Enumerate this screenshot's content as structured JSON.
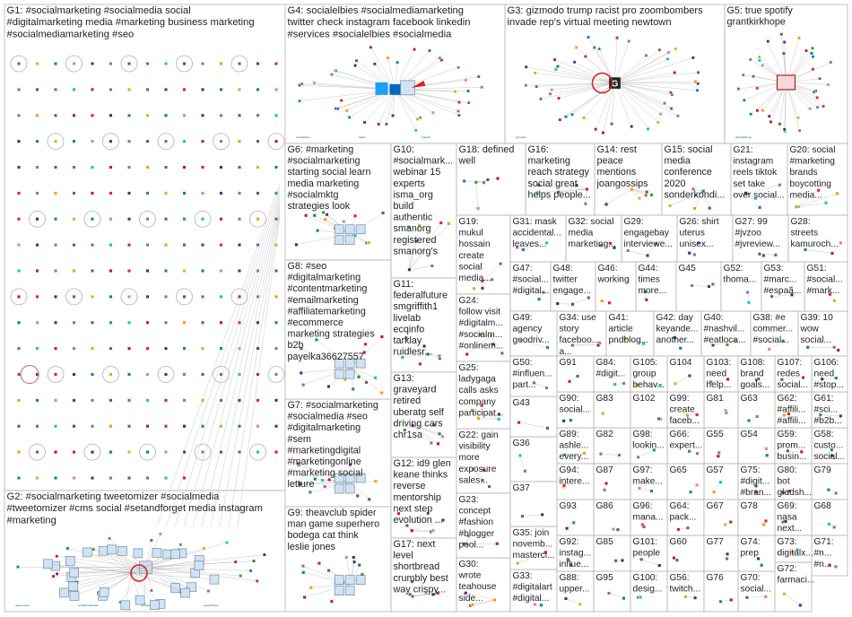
{
  "groups": [
    {
      "id": "G1",
      "lines": [
        "G1: #socialmarketing #socialmedia social",
        "#digitalmarketing media #marketing business marketing",
        "#socialmediamarketing #seo"
      ],
      "layout": "grid"
    },
    {
      "id": "G2",
      "lines": [
        "G2: #socialmarketing tweetomizer #socialmedia",
        "#tweetomizer #cms social #setandforget media instagram",
        "#marketing"
      ],
      "layout": "hub"
    },
    {
      "id": "G3",
      "lines": [
        "G3: gizmodo trump racist pro zoombombers",
        "invade rep's virtual meeting newtown"
      ],
      "layout": "hub"
    },
    {
      "id": "G4",
      "lines": [
        "G4: socialelbies #socialmediamarketing",
        "twitter check instagram facebook linkedin",
        "#services #socialelbies #socialmedia"
      ],
      "layout": "hub"
    },
    {
      "id": "G5",
      "lines": [
        "G5: true spotify",
        "grantkirkhope"
      ],
      "layout": "hub"
    },
    {
      "id": "G6",
      "lines": [
        "G6: #marketing",
        "#socialmarketing",
        "starting social learn",
        "media marketing",
        "#socialmktg",
        "strategies look"
      ],
      "layout": "cluster"
    },
    {
      "id": "G7",
      "lines": [
        "G7: #socialmarketing",
        "#socialmedia #seo",
        "#digitalmarketing",
        "#sem",
        "#marketingdigital",
        "#marketingonline",
        "#marketing social",
        "letture"
      ],
      "layout": "cluster"
    },
    {
      "id": "G8",
      "lines": [
        "G8: #seo",
        "#digitalmarketing",
        "#contentmarketing",
        "#emailmarketing",
        "#affiliatemarketing",
        "#ecommerce",
        "marketing strategies",
        "b2b",
        "payelka36627557"
      ],
      "layout": "cluster"
    },
    {
      "id": "G9",
      "lines": [
        "G9: theavclub spider",
        "man game superhero",
        "bodega cat think",
        "leslie jones"
      ],
      "layout": "cluster"
    },
    {
      "id": "G10",
      "lines": [
        "G10:",
        "#socialmark...",
        "webinar 15",
        "experts",
        "isma_org",
        "build",
        "authentic",
        "smanorg",
        "registered",
        "smanorg's"
      ],
      "layout": "small"
    },
    {
      "id": "G11",
      "lines": [
        "G11:",
        "federalfuture",
        "smgriffith1",
        "livelab",
        "ecqinfo",
        "tarklay",
        "ruidlesr..."
      ],
      "layout": "small"
    },
    {
      "id": "G12",
      "lines": [
        "G12: id9 glen",
        "keane thinks",
        "reverse",
        "mentorship",
        "next step",
        "evolution ..."
      ],
      "layout": "small"
    },
    {
      "id": "G13",
      "lines": [
        "G13:",
        "graveyard",
        "retired",
        "uberatg self",
        "driving cars",
        "chr1sa"
      ],
      "layout": "small"
    },
    {
      "id": "G14",
      "lines": [
        "G14: rest",
        "peace",
        "mentions",
        "joangossips"
      ],
      "layout": "small"
    },
    {
      "id": "G15",
      "lines": [
        "G15: social",
        "media",
        "conference",
        "2020",
        "sonderkondi..."
      ],
      "layout": "small"
    },
    {
      "id": "G16",
      "lines": [
        "G16:",
        "marketing",
        "reach strategy",
        "social great",
        "helps people..."
      ],
      "layout": "small"
    },
    {
      "id": "G17",
      "lines": [
        "G17: next",
        "level",
        "shortbread",
        "crumbly best",
        "way crispy..."
      ],
      "layout": "small"
    },
    {
      "id": "G18",
      "lines": [
        "G18: defined",
        "well"
      ],
      "layout": "small"
    },
    {
      "id": "G19",
      "lines": [
        "G19:",
        "mukul",
        "hossain",
        "create",
        "social",
        "media..."
      ],
      "layout": "small"
    },
    {
      "id": "G20",
      "lines": [
        "G20: social",
        "#marketing",
        "brands",
        "boycotting",
        "media..."
      ],
      "layout": "small"
    },
    {
      "id": "G21",
      "lines": [
        "G21:",
        "instagram",
        "reels tiktok",
        "set take",
        "over social..."
      ],
      "layout": "small"
    },
    {
      "id": "G22",
      "lines": [
        "G22: gain",
        "visibility",
        "more",
        "exposure",
        "sales..."
      ],
      "layout": "small"
    },
    {
      "id": "G23",
      "lines": [
        "G23:",
        "concept",
        "#fashion",
        "#blogger",
        "pool..."
      ],
      "layout": "small"
    },
    {
      "id": "G24",
      "lines": [
        "G24:",
        "follow visit",
        "#digitalm...",
        "#socialm...",
        "#onlinem..."
      ],
      "layout": "small"
    },
    {
      "id": "G25",
      "lines": [
        "G25:",
        "ladygaga",
        "calls asks",
        "company",
        "participat..."
      ],
      "layout": "small"
    },
    {
      "id": "G26",
      "lines": [
        "G26: shirt",
        "uterus",
        "unisex..."
      ],
      "layout": "small"
    },
    {
      "id": "G27",
      "lines": [
        "G27: 99",
        "#jvzoo",
        "#jvreview..."
      ],
      "layout": "small"
    },
    {
      "id": "G28",
      "lines": [
        "G28:",
        "streets",
        "kamuroch..."
      ],
      "layout": "small"
    },
    {
      "id": "G29",
      "lines": [
        "G29:",
        "engagebay",
        "interviewe..."
      ],
      "layout": "small"
    },
    {
      "id": "G30",
      "lines": [
        "G30:",
        "wrote",
        "teahouse",
        "side..."
      ],
      "layout": "small"
    },
    {
      "id": "G31",
      "lines": [
        "G31: mask",
        "accidental...",
        "leaves..."
      ],
      "layout": "small"
    },
    {
      "id": "G32",
      "lines": [
        "G32: social",
        "media",
        "marketing..."
      ],
      "layout": "small"
    },
    {
      "id": "G33",
      "lines": [
        "G33:",
        "#digitalart",
        "#digital..."
      ],
      "layout": "small"
    },
    {
      "id": "G34",
      "lines": [
        "G34: use",
        "story",
        "faceboo...",
        "a..."
      ],
      "layout": "small"
    },
    {
      "id": "G35",
      "lines": [
        "G35: join",
        "novemb...",
        "mastercl..."
      ],
      "layout": "small"
    },
    {
      "id": "G36",
      "lines": [
        "G36"
      ],
      "layout": "small"
    },
    {
      "id": "G37",
      "lines": [
        "G37"
      ],
      "layout": "small"
    },
    {
      "id": "G38",
      "lines": [
        "G38: #e",
        "commer...",
        "#social..."
      ],
      "layout": "small"
    },
    {
      "id": "G39",
      "lines": [
        "G39: 10",
        "wow",
        "social..."
      ],
      "layout": "small"
    },
    {
      "id": "G40",
      "lines": [
        "G40:",
        "#nashvil...",
        "#eatloca..."
      ],
      "layout": "small"
    },
    {
      "id": "G41",
      "lines": [
        "G41:",
        "article",
        "pndblog..."
      ],
      "layout": "small"
    },
    {
      "id": "G42",
      "lines": [
        "G42: day",
        "keyande...",
        "another..."
      ],
      "layout": "small"
    },
    {
      "id": "G43",
      "lines": [
        "G43"
      ],
      "layout": "small"
    },
    {
      "id": "G44",
      "lines": [
        "G44:",
        "times",
        "more..."
      ],
      "layout": "small"
    },
    {
      "id": "G45",
      "lines": [
        "G45"
      ],
      "layout": "small"
    },
    {
      "id": "G46",
      "lines": [
        "G46:",
        "working"
      ],
      "layout": "small"
    },
    {
      "id": "G47",
      "lines": [
        "G47:",
        "#social...",
        "#digital..."
      ],
      "layout": "small"
    },
    {
      "id": "G48",
      "lines": [
        "G48:",
        "twitter",
        "engage..."
      ],
      "layout": "small"
    },
    {
      "id": "G49",
      "lines": [
        "G49:",
        "agency",
        "geodriv..."
      ],
      "layout": "small"
    },
    {
      "id": "G50",
      "lines": [
        "G50:",
        "#influen...",
        "part..."
      ],
      "layout": "small"
    },
    {
      "id": "G51",
      "lines": [
        "G51:",
        "#social...",
        "#mark..."
      ],
      "layout": "small"
    },
    {
      "id": "G52",
      "lines": [
        "G52:",
        "thoma..."
      ],
      "layout": "small"
    },
    {
      "id": "G53",
      "lines": [
        "G53:",
        "#marc...",
        "#espaã..."
      ],
      "layout": "small"
    },
    {
      "id": "G54",
      "lines": [
        "G54"
      ],
      "layout": "small"
    },
    {
      "id": "G55",
      "lines": [
        "G55"
      ],
      "layout": "small"
    },
    {
      "id": "G56",
      "lines": [
        "G56:",
        "twitch..."
      ],
      "layout": "small"
    },
    {
      "id": "G57",
      "lines": [
        "G57"
      ],
      "layout": "small"
    },
    {
      "id": "G58",
      "lines": [
        "G58:",
        "custo...",
        "social..."
      ],
      "layout": "small"
    },
    {
      "id": "G59",
      "lines": [
        "G59:",
        "prom...",
        "busin..."
      ],
      "layout": "small"
    },
    {
      "id": "G60",
      "lines": [
        "G60"
      ],
      "layout": "small"
    },
    {
      "id": "G61",
      "lines": [
        "G61:",
        "#sci...",
        "#b2b..."
      ],
      "layout": "small"
    },
    {
      "id": "G62",
      "lines": [
        "G62:",
        "#affili...",
        "#affili..."
      ],
      "layout": "small"
    },
    {
      "id": "G63",
      "lines": [
        "G63"
      ],
      "layout": "small"
    },
    {
      "id": "G64",
      "lines": [
        "G64:",
        "pack..."
      ],
      "layout": "small"
    },
    {
      "id": "G65",
      "lines": [
        "G65"
      ],
      "layout": "small"
    },
    {
      "id": "G66",
      "lines": [
        "G66:",
        "expert..."
      ],
      "layout": "small"
    },
    {
      "id": "G67",
      "lines": [
        "G67"
      ],
      "layout": "small"
    },
    {
      "id": "G68",
      "lines": [
        "G68"
      ],
      "layout": "small"
    },
    {
      "id": "G69",
      "lines": [
        "G69:",
        "nasa",
        "next..."
      ],
      "layout": "small"
    },
    {
      "id": "G70",
      "lines": [
        "G70:",
        "social..."
      ],
      "layout": "small"
    },
    {
      "id": "G71",
      "lines": [
        "G71:",
        "#n...",
        "#n..."
      ],
      "layout": "small"
    },
    {
      "id": "G72",
      "lines": [
        "G72:",
        "farmaci..."
      ],
      "layout": "small"
    },
    {
      "id": "G73",
      "lines": [
        "G73:",
        "digitalx..."
      ],
      "layout": "small"
    },
    {
      "id": "G74",
      "lines": [
        "G74:",
        "prep"
      ],
      "layout": "small"
    },
    {
      "id": "G75",
      "lines": [
        "G75:",
        "#digit...",
        "#bran..."
      ],
      "layout": "small"
    },
    {
      "id": "G76",
      "lines": [
        "G76"
      ],
      "layout": "small"
    },
    {
      "id": "G77",
      "lines": [
        "G77"
      ],
      "layout": "small"
    },
    {
      "id": "G78",
      "lines": [
        "G78"
      ],
      "layout": "small"
    },
    {
      "id": "G79",
      "lines": [
        "G79"
      ],
      "layout": "small"
    },
    {
      "id": "G80",
      "lines": [
        "G80:",
        "bot",
        "gladsh..."
      ],
      "layout": "small"
    },
    {
      "id": "G81",
      "lines": [
        "G81"
      ],
      "layout": "small"
    },
    {
      "id": "G82",
      "lines": [
        "G82"
      ],
      "layout": "small"
    },
    {
      "id": "G83",
      "lines": [
        "G83"
      ],
      "layout": "small"
    },
    {
      "id": "G84",
      "lines": [
        "G84:",
        "#digit..."
      ],
      "layout": "small"
    },
    {
      "id": "G85",
      "lines": [
        "G85"
      ],
      "layout": "small"
    },
    {
      "id": "G86",
      "lines": [
        "G86"
      ],
      "layout": "small"
    },
    {
      "id": "G87",
      "lines": [
        "G87"
      ],
      "layout": "small"
    },
    {
      "id": "G88",
      "lines": [
        "G88:",
        "upper..."
      ],
      "layout": "small"
    },
    {
      "id": "G89",
      "lines": [
        "G89:",
        "ashle...",
        "every..."
      ],
      "layout": "small"
    },
    {
      "id": "G90",
      "lines": [
        "G90:",
        "social..."
      ],
      "layout": "small"
    },
    {
      "id": "G91",
      "lines": [
        "G91"
      ],
      "layout": "small"
    },
    {
      "id": "G92",
      "lines": [
        "G92:",
        "instag...",
        "influe..."
      ],
      "layout": "small"
    },
    {
      "id": "G93",
      "lines": [
        "G93"
      ],
      "layout": "small"
    },
    {
      "id": "G94",
      "lines": [
        "G94:",
        "intere..."
      ],
      "layout": "small"
    },
    {
      "id": "G95",
      "lines": [
        "G95"
      ],
      "layout": "small"
    },
    {
      "id": "G96",
      "lines": [
        "G96:",
        "mana..."
      ],
      "layout": "small"
    },
    {
      "id": "G97",
      "lines": [
        "G97:",
        "make..."
      ],
      "layout": "small"
    },
    {
      "id": "G98",
      "lines": [
        "G98:",
        "lookin..."
      ],
      "layout": "small"
    },
    {
      "id": "G99",
      "lines": [
        "G99:",
        "create",
        "faceb..."
      ],
      "layout": "small"
    },
    {
      "id": "G100",
      "lines": [
        "G100:",
        "desig..."
      ],
      "layout": "small"
    },
    {
      "id": "G101",
      "lines": [
        "G101:",
        "people"
      ],
      "layout": "small"
    },
    {
      "id": "G102",
      "lines": [
        "G102"
      ],
      "layout": "small"
    },
    {
      "id": "G103",
      "lines": [
        "G103:",
        "need",
        "help..."
      ],
      "layout": "small"
    },
    {
      "id": "G104",
      "lines": [
        "G104"
      ],
      "layout": "small"
    },
    {
      "id": "G105",
      "lines": [
        "G105:",
        "group",
        "behav..."
      ],
      "layout": "small"
    },
    {
      "id": "G106",
      "lines": [
        "G106:",
        "need",
        "#stop..."
      ],
      "layout": "small"
    },
    {
      "id": "G107",
      "lines": [
        "G107:",
        "redes",
        "social..."
      ],
      "layout": "small"
    },
    {
      "id": "G108",
      "lines": [
        "G108:",
        "brand",
        "goals..."
      ],
      "layout": "small"
    }
  ],
  "node_labels": {
    "G2": [
      "tweetomizer",
      "socialmediaexam",
      "smtoday",
      "setandforget"
    ],
    "G3": [
      "gizmodo"
    ],
    "G4": [
      "socialelbies",
      "twitter",
      "linkedin"
    ],
    "G5": [
      "grantkirkhope"
    ]
  },
  "colors": {
    "box_border": "#b3b3b3",
    "edge": "#9a9a9a",
    "hub_loop": "#e02020",
    "palette": [
      "#1f77b4",
      "#2ca02c",
      "#d62728",
      "#9467bd",
      "#8c564b",
      "#e377c2",
      "#7f7f7f",
      "#bcbd22",
      "#17becf",
      "#1a3d7c",
      "#2e7d32",
      "#b71c1c",
      "#6a1b9a",
      "#ff9800",
      "#00897b",
      "#c2185b"
    ]
  },
  "icons": {
    "twitter": "twitter-bird-icon",
    "linkedin": "linkedin-icon",
    "gizmodo": "gizmodo-g-icon"
  }
}
